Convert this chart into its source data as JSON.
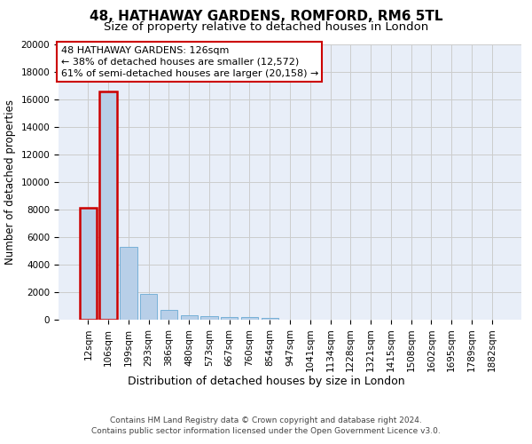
{
  "title": "48, HATHAWAY GARDENS, ROMFORD, RM6 5TL",
  "subtitle": "Size of property relative to detached houses in London",
  "xlabel": "Distribution of detached houses by size in London",
  "ylabel": "Number of detached properties",
  "categories": [
    "12sqm",
    "106sqm",
    "199sqm",
    "293sqm",
    "386sqm",
    "480sqm",
    "573sqm",
    "667sqm",
    "760sqm",
    "854sqm",
    "947sqm",
    "1041sqm",
    "1134sqm",
    "1228sqm",
    "1321sqm",
    "1415sqm",
    "1508sqm",
    "1602sqm",
    "1695sqm",
    "1789sqm",
    "1882sqm"
  ],
  "values": [
    8100,
    16600,
    5300,
    1850,
    700,
    300,
    230,
    210,
    175,
    155,
    0,
    0,
    0,
    0,
    0,
    0,
    0,
    0,
    0,
    0,
    0
  ],
  "bar_color": "#b8cfe8",
  "bar_edge_color": "#6aaad4",
  "highlight_indices": [
    0,
    1
  ],
  "highlight_edge_color": "#cc0000",
  "annotation_box_text": "48 HATHAWAY GARDENS: 126sqm\n← 38% of detached houses are smaller (12,572)\n61% of semi-detached houses are larger (20,158) →",
  "annotation_box_edge_color": "#cc0000",
  "annotation_box_facecolor": "white",
  "ylim": [
    0,
    20000
  ],
  "yticks": [
    0,
    2000,
    4000,
    6000,
    8000,
    10000,
    12000,
    14000,
    16000,
    18000,
    20000
  ],
  "grid_color": "#cccccc",
  "bg_color": "#e8eef8",
  "footer_text": "Contains HM Land Registry data © Crown copyright and database right 2024.\nContains public sector information licensed under the Open Government Licence v3.0.",
  "title_fontsize": 11,
  "subtitle_fontsize": 9.5,
  "xlabel_fontsize": 9,
  "ylabel_fontsize": 8.5,
  "tick_fontsize": 7.5,
  "annotation_fontsize": 8,
  "footer_fontsize": 6.5
}
